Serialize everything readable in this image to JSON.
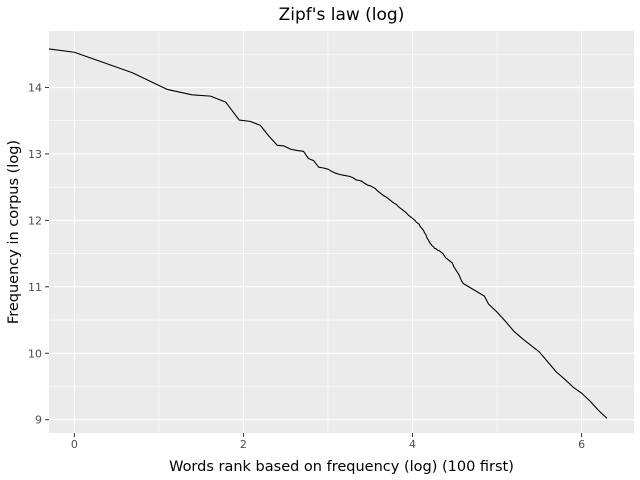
{
  "chart_data": {
    "type": "line",
    "title": "Zipf's law (log)",
    "xlabel": "Words rank based on frequency (log) (100 first)",
    "ylabel": "Frequency in corpus (log)",
    "xlim": [
      -0.3,
      6.62
    ],
    "ylim": [
      8.8,
      14.85
    ],
    "x_ticks": [
      0,
      2,
      4,
      6
    ],
    "y_ticks": [
      9,
      10,
      11,
      12,
      13,
      14
    ],
    "grid": true,
    "colors": {
      "panel": "#ebebeb",
      "grid": "#ffffff",
      "line": "#000000"
    },
    "series": [
      {
        "x": [
          -0.3,
          0.0,
          0.69,
          1.1,
          1.39,
          1.61,
          1.79,
          1.95,
          2.08,
          2.2,
          2.3,
          2.4,
          2.48,
          2.56,
          2.64,
          2.71,
          2.77,
          2.83,
          2.89,
          2.94,
          3.0,
          3.04,
          3.09,
          3.14,
          3.18,
          3.22,
          3.26,
          3.3,
          3.33,
          3.37,
          3.4,
          3.43,
          3.47,
          3.5,
          3.53,
          3.56,
          3.58,
          3.61,
          3.64,
          3.66,
          3.69,
          3.71,
          3.74,
          3.76,
          3.78,
          3.81,
          3.83,
          3.85,
          3.87,
          3.89,
          3.91,
          3.93,
          3.95,
          3.97,
          3.99,
          4.01,
          4.03,
          4.04,
          4.06,
          4.08,
          4.09,
          4.11,
          4.13,
          4.14,
          4.16,
          4.17,
          4.19,
          4.2,
          4.22,
          4.23,
          4.25,
          4.26,
          4.28,
          4.29,
          4.3,
          4.32,
          4.33,
          4.34,
          4.36,
          4.37,
          4.38,
          4.39,
          4.41,
          4.42,
          4.43,
          4.44,
          4.45,
          4.47,
          4.48,
          4.49,
          4.5,
          4.51,
          4.52,
          4.53,
          4.54,
          4.55,
          4.56,
          4.57,
          4.58,
          4.6,
          4.85,
          4.9,
          5.0,
          5.1,
          5.2,
          5.3,
          5.4,
          5.5,
          5.6,
          5.7,
          5.8,
          5.9,
          6.0,
          6.1,
          6.2,
          6.3
        ],
        "y": [
          14.58,
          14.53,
          14.22,
          13.97,
          13.89,
          13.87,
          13.78,
          13.51,
          13.49,
          13.43,
          13.27,
          13.13,
          13.12,
          13.07,
          13.05,
          13.04,
          12.93,
          12.9,
          12.8,
          12.79,
          12.77,
          12.74,
          12.71,
          12.69,
          12.68,
          12.67,
          12.66,
          12.64,
          12.61,
          12.6,
          12.59,
          12.56,
          12.53,
          12.52,
          12.5,
          12.48,
          12.45,
          12.42,
          12.39,
          12.37,
          12.35,
          12.33,
          12.3,
          12.28,
          12.26,
          12.24,
          12.21,
          12.19,
          12.17,
          12.15,
          12.13,
          12.11,
          12.08,
          12.06,
          12.04,
          12.02,
          12.0,
          11.98,
          11.96,
          11.94,
          11.91,
          11.88,
          11.85,
          11.82,
          11.78,
          11.74,
          11.7,
          11.67,
          11.64,
          11.62,
          11.6,
          11.58,
          11.57,
          11.56,
          11.55,
          11.54,
          11.53,
          11.52,
          11.5,
          11.48,
          11.46,
          11.44,
          11.42,
          11.41,
          11.4,
          11.39,
          11.38,
          11.36,
          11.33,
          11.3,
          11.28,
          11.26,
          11.24,
          11.22,
          11.2,
          11.18,
          11.15,
          11.12,
          11.09,
          11.05,
          10.86,
          10.74,
          10.62,
          10.48,
          10.33,
          10.22,
          10.12,
          10.02,
          9.87,
          9.72,
          9.61,
          9.49,
          9.4,
          9.28,
          9.14,
          9.02
        ]
      }
    ]
  }
}
